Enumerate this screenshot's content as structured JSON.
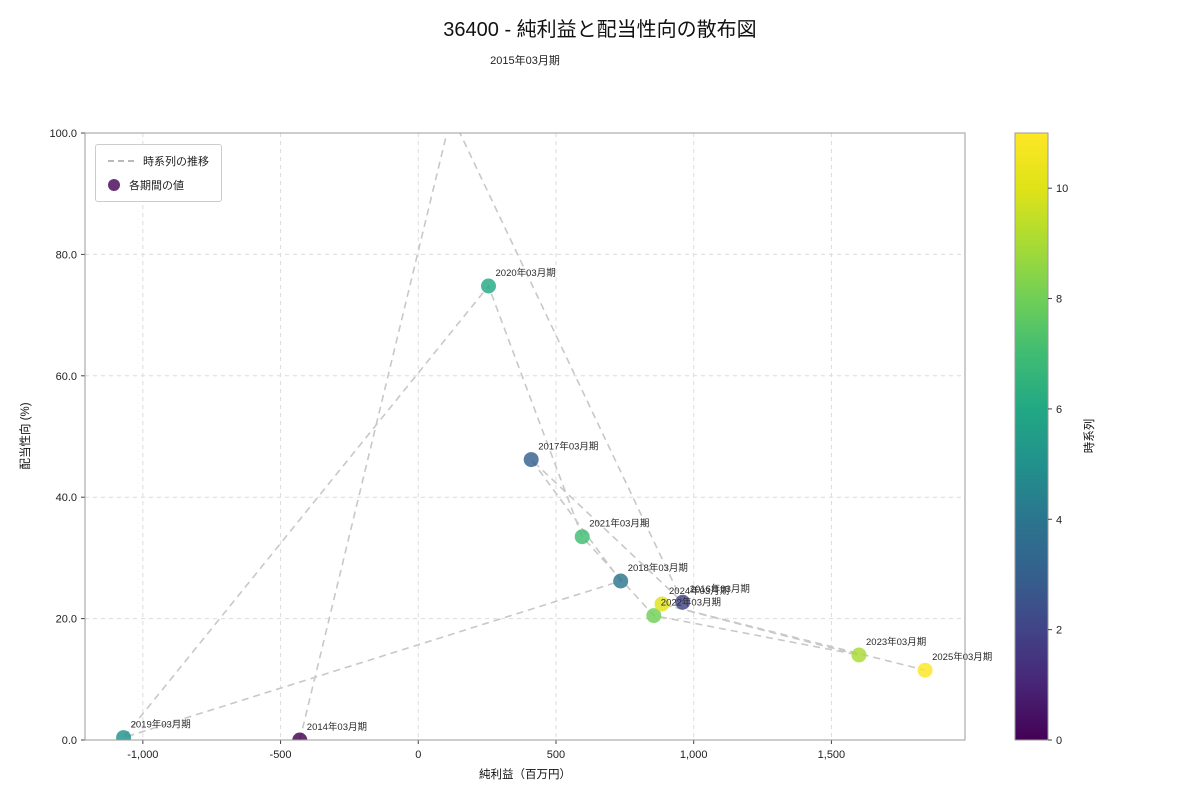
{
  "title": "36400 - 純利益と配当性向の散布図",
  "subtitle": "2015年03月期",
  "chart_data": {
    "type": "scatter",
    "xlabel": "純利益（百万円）",
    "ylabel": "配当性向 (%)",
    "xlim": [
      -1210,
      1985
    ],
    "ylim": [
      0,
      100
    ],
    "grid": true,
    "x_ticks": [
      {
        "v": -1000,
        "label": "-1,000"
      },
      {
        "v": -500,
        "label": "-500"
      },
      {
        "v": 0,
        "label": "0"
      },
      {
        "v": 500,
        "label": "500"
      },
      {
        "v": 1000,
        "label": "1,000"
      },
      {
        "v": 1500,
        "label": "1,500"
      }
    ],
    "y_ticks": [
      {
        "v": 0,
        "label": "0.0"
      },
      {
        "v": 20,
        "label": "20.0"
      },
      {
        "v": 40,
        "label": "40.0"
      },
      {
        "v": 60,
        "label": "60.0"
      },
      {
        "v": 80,
        "label": "80.0"
      },
      {
        "v": 100,
        "label": "100.0"
      }
    ],
    "legend": {
      "position": "upper-left",
      "line_label": "時系列の推移",
      "point_label": "各期間の値"
    },
    "colorbar": {
      "label": "時系列",
      "min": 0,
      "max": 11,
      "ticks": [
        0,
        2,
        4,
        6,
        8,
        10
      ],
      "colors": [
        "#440154",
        "#482576",
        "#414487",
        "#35608d",
        "#2b758e",
        "#21918c",
        "#22a884",
        "#3fbc73",
        "#70cf57",
        "#a8db34",
        "#dfe318",
        "#fde725"
      ]
    },
    "line_style": {
      "color": "#c8c8c8",
      "dash": "7 5"
    },
    "points": [
      {
        "label": "2014年03月期",
        "x": -430,
        "y": 0.0,
        "t": 0,
        "color": "#440154",
        "label_visible": true
      },
      {
        "label": "2015年03月期",
        "x": 120,
        "y": 103.0,
        "t": 1,
        "color": "#482576",
        "label_visible": false
      },
      {
        "label": "2016年03月期",
        "x": 960,
        "y": 22.7,
        "t": 2,
        "color": "#414487",
        "label_visible": true
      },
      {
        "label": "2017年03月期",
        "x": 410,
        "y": 46.2,
        "t": 3,
        "color": "#35608d",
        "label_visible": true
      },
      {
        "label": "2018年03月期",
        "x": 735,
        "y": 26.2,
        "t": 4,
        "color": "#2b758e",
        "label_visible": true
      },
      {
        "label": "2019年03月期",
        "x": -1070,
        "y": 0.4,
        "t": 5,
        "color": "#21918c",
        "label_visible": true
      },
      {
        "label": "2020年03月期",
        "x": 255,
        "y": 74.8,
        "t": 6,
        "color": "#22a884",
        "label_visible": true
      },
      {
        "label": "2021年03月期",
        "x": 595,
        "y": 33.5,
        "t": 7,
        "color": "#3fbc73",
        "label_visible": true
      },
      {
        "label": "2022年03月期",
        "x": 855,
        "y": 20.5,
        "t": 8,
        "color": "#70cf57",
        "label_visible": true
      },
      {
        "label": "2023年03月期",
        "x": 1600,
        "y": 14.0,
        "t": 9,
        "color": "#a8db34",
        "label_visible": true
      },
      {
        "label": "2024年03月期",
        "x": 885,
        "y": 22.4,
        "t": 10,
        "color": "#dfe318",
        "label_visible": true
      },
      {
        "label": "2025年03月期",
        "x": 1840,
        "y": 11.5,
        "t": 11,
        "color": "#fde725",
        "label_visible": true
      }
    ]
  }
}
